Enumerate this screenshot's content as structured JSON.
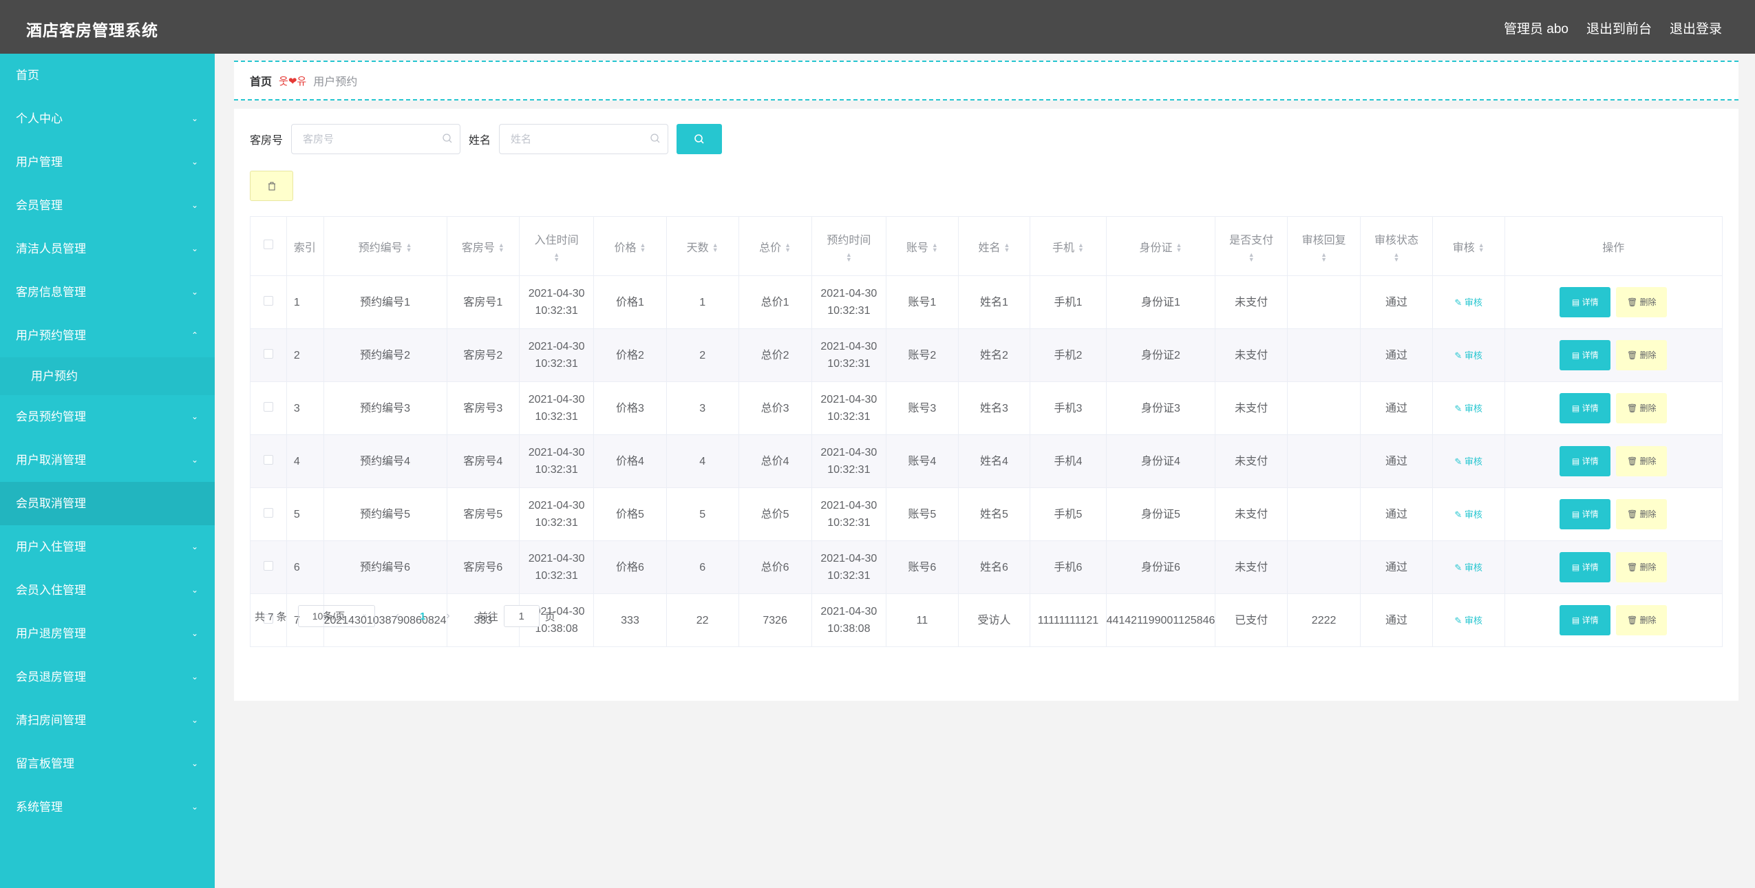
{
  "header": {
    "brand": "酒店客房管理系统",
    "admin": "管理员 abo",
    "to_front": "退出到前台",
    "logout": "退出登录"
  },
  "sidebar": {
    "items": [
      {
        "label": "首页",
        "chevron": ""
      },
      {
        "label": "个人中心",
        "chevron": "⌄"
      },
      {
        "label": "用户管理",
        "chevron": "⌄"
      },
      {
        "label": "会员管理",
        "chevron": "⌄"
      },
      {
        "label": "清洁人员管理",
        "chevron": "⌄"
      },
      {
        "label": "客房信息管理",
        "chevron": "⌄"
      },
      {
        "label": "用户预约管理",
        "chevron": "⌃"
      },
      {
        "label": "用户预约",
        "chevron": ""
      },
      {
        "label": "会员预约管理",
        "chevron": "⌄"
      },
      {
        "label": "用户取消管理",
        "chevron": "⌄"
      },
      {
        "label": "会员取消管理",
        "chevron": ""
      },
      {
        "label": "用户入住管理",
        "chevron": "⌄"
      },
      {
        "label": "会员入住管理",
        "chevron": "⌄"
      },
      {
        "label": "用户退房管理",
        "chevron": "⌄"
      },
      {
        "label": "会员退房管理",
        "chevron": "⌄"
      },
      {
        "label": "清扫房间管理",
        "chevron": "⌄"
      },
      {
        "label": "留言板管理",
        "chevron": "⌄"
      },
      {
        "label": "系统管理",
        "chevron": "⌄"
      }
    ]
  },
  "breadcrumb": {
    "home": "首页",
    "separator": "웃❤유",
    "current": "用户预约"
  },
  "search": {
    "room_label": "客房号",
    "room_placeholder": "客房号",
    "name_label": "姓名",
    "name_placeholder": "姓名"
  },
  "table": {
    "headers": [
      "索引",
      "预约编号",
      "客房号",
      "入住时间",
      "价格",
      "天数",
      "总价",
      "预约时间",
      "账号",
      "姓名",
      "手机",
      "身份证",
      "是否支付",
      "审核回复",
      "审核状态",
      "审核",
      "操作"
    ],
    "rows": [
      [
        "1",
        "预约编号1",
        "客房号1",
        "2021-04-30 10:32:31",
        "价格1",
        "1",
        "总价1",
        "2021-04-30 10:32:31",
        "账号1",
        "姓名1",
        "手机1",
        "身份证1",
        "未支付",
        "",
        "通过"
      ],
      [
        "2",
        "预约编号2",
        "客房号2",
        "2021-04-30 10:32:31",
        "价格2",
        "2",
        "总价2",
        "2021-04-30 10:32:31",
        "账号2",
        "姓名2",
        "手机2",
        "身份证2",
        "未支付",
        "",
        "通过"
      ],
      [
        "3",
        "预约编号3",
        "客房号3",
        "2021-04-30 10:32:31",
        "价格3",
        "3",
        "总价3",
        "2021-04-30 10:32:31",
        "账号3",
        "姓名3",
        "手机3",
        "身份证3",
        "未支付",
        "",
        "通过"
      ],
      [
        "4",
        "预约编号4",
        "客房号4",
        "2021-04-30 10:32:31",
        "价格4",
        "4",
        "总价4",
        "2021-04-30 10:32:31",
        "账号4",
        "姓名4",
        "手机4",
        "身份证4",
        "未支付",
        "",
        "通过"
      ],
      [
        "5",
        "预约编号5",
        "客房号5",
        "2021-04-30 10:32:31",
        "价格5",
        "5",
        "总价5",
        "2021-04-30 10:32:31",
        "账号5",
        "姓名5",
        "手机5",
        "身份证5",
        "未支付",
        "",
        "通过"
      ],
      [
        "6",
        "预约编号6",
        "客房号6",
        "2021-04-30 10:32:31",
        "价格6",
        "6",
        "总价6",
        "2021-04-30 10:32:31",
        "账号6",
        "姓名6",
        "手机6",
        "身份证6",
        "未支付",
        "",
        "通过"
      ],
      [
        "7",
        "20214301038790860824",
        "333",
        "2021-04-30 10:38:08",
        "333",
        "22",
        "7326",
        "2021-04-30 10:38:08",
        "11",
        "受访人",
        "11111111121",
        "441421199001125846",
        "已支付",
        "2222",
        "通过"
      ]
    ],
    "audit_label": "审核",
    "detail_label": "详情",
    "delete_label": "删除"
  },
  "pagination": {
    "total": "共 7 条",
    "page_size": "10条/页",
    "current_page": "1",
    "goto_label": "前往",
    "goto_value": "1",
    "page_suffix": "页"
  },
  "colors": {
    "accent": "#26c6d0",
    "header_bg": "#4a4a4a",
    "delete_bg": "#ffffcc"
  }
}
